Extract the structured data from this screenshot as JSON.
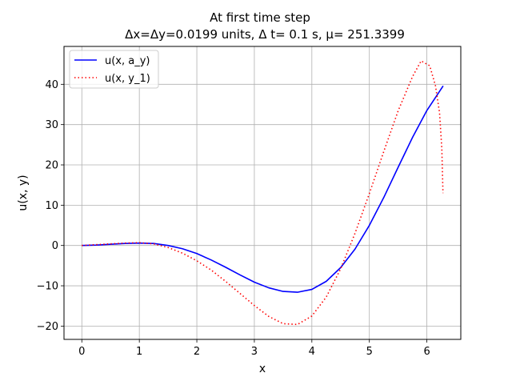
{
  "chart_data": {
    "type": "line",
    "title_line1": "At first time step",
    "title_line2": "Δx=Δy=0.0199 units, Δ t= 0.1 s, μ= 251.3399",
    "xlabel": "x",
    "ylabel": "u(x, y)",
    "xlim": [
      -0.31,
      6.59
    ],
    "ylim": [
      -23.3,
      49.4
    ],
    "xticks": [
      0,
      1,
      2,
      3,
      4,
      5,
      6
    ],
    "yticks": [
      -20,
      -10,
      0,
      10,
      20,
      30,
      40
    ],
    "ytick_labels": [
      "−20",
      "−10",
      "0",
      "10",
      "20",
      "30",
      "40"
    ],
    "grid": true,
    "legend_position": "upper-left",
    "series": [
      {
        "name": "u(x, a_y)",
        "color": "#0000ff",
        "style": "solid",
        "x": [
          0,
          0.25,
          0.5,
          0.75,
          1.0,
          1.25,
          1.5,
          1.75,
          2.0,
          2.25,
          2.5,
          2.75,
          3.0,
          3.25,
          3.5,
          3.75,
          4.0,
          4.25,
          4.5,
          4.75,
          5.0,
          5.25,
          5.5,
          5.75,
          6.0,
          6.2832
        ],
        "y": [
          0,
          0.1,
          0.3,
          0.5,
          0.6,
          0.5,
          0.0,
          -0.8,
          -2.0,
          -3.6,
          -5.4,
          -7.3,
          -9.1,
          -10.5,
          -11.4,
          -11.6,
          -10.9,
          -8.9,
          -5.5,
          -0.9,
          5.0,
          11.9,
          19.4,
          26.8,
          33.5,
          39.6
        ]
      },
      {
        "name": "u(x, y_1)",
        "color": "#ff0000",
        "style": "dotted",
        "x": [
          0,
          0.25,
          0.5,
          0.75,
          1.0,
          1.25,
          1.5,
          1.75,
          2.0,
          2.25,
          2.5,
          2.75,
          3.0,
          3.25,
          3.5,
          3.75,
          4.0,
          4.25,
          4.5,
          4.75,
          5.0,
          5.25,
          5.5,
          5.75,
          5.9,
          6.05,
          6.15,
          6.22,
          6.26,
          6.28
        ],
        "y": [
          0,
          0.2,
          0.4,
          0.6,
          0.7,
          0.4,
          -0.5,
          -1.9,
          -3.8,
          -6.1,
          -8.9,
          -11.9,
          -14.9,
          -17.6,
          -19.4,
          -19.6,
          -17.5,
          -12.8,
          -5.8,
          3.0,
          12.9,
          23.3,
          33.4,
          41.9,
          45.8,
          44.6,
          39.6,
          33.0,
          24.0,
          13.0
        ]
      }
    ]
  }
}
